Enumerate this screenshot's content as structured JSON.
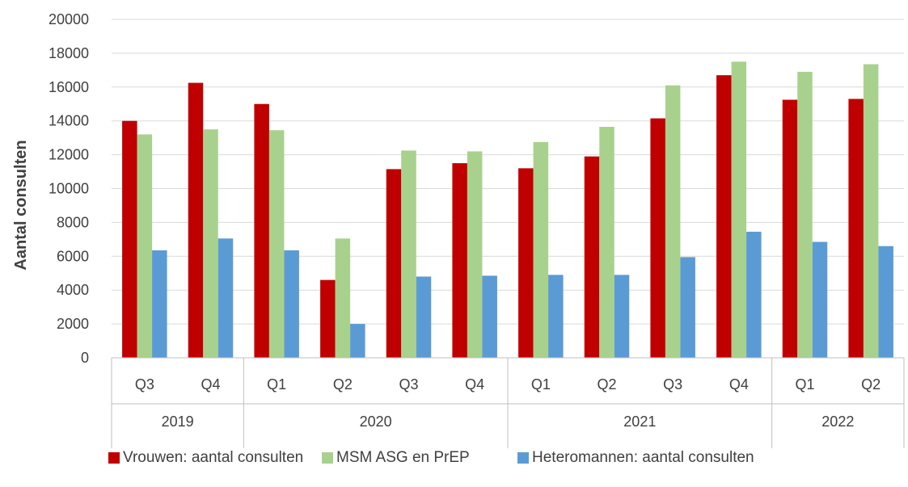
{
  "chart_data": {
    "type": "bar",
    "ylabel": "Aantal consulten",
    "ylim": [
      0,
      20000
    ],
    "yticks": [
      0,
      2000,
      4000,
      6000,
      8000,
      10000,
      12000,
      14000,
      16000,
      18000,
      20000
    ],
    "grid": true,
    "legend_position": "bottom",
    "categories": [
      "Q3",
      "Q4",
      "Q1",
      "Q2",
      "Q3",
      "Q4",
      "Q1",
      "Q2",
      "Q3",
      "Q4",
      "Q1",
      "Q2"
    ],
    "year_groups": [
      {
        "label": "2019",
        "count": 2
      },
      {
        "label": "2020",
        "count": 4
      },
      {
        "label": "2021",
        "count": 4
      },
      {
        "label": "2022",
        "count": 2
      }
    ],
    "series": [
      {
        "name": "Vrouwen: aantal consulten",
        "color": "#C00000",
        "values": [
          14000,
          16250,
          15000,
          4600,
          11150,
          11500,
          11200,
          11900,
          14150,
          16700,
          15250,
          15300
        ]
      },
      {
        "name": "MSM ASG en PrEP",
        "color": "#A9D18E",
        "values": [
          13200,
          13500,
          13450,
          7050,
          12250,
          12200,
          12750,
          13650,
          16100,
          17500,
          16900,
          17350
        ]
      },
      {
        "name": "Heteromannen: aantal consulten",
        "color": "#5B9BD5",
        "values": [
          6350,
          7050,
          6350,
          2000,
          4800,
          4850,
          4900,
          4900,
          5950,
          7450,
          6850,
          6600
        ]
      }
    ]
  }
}
